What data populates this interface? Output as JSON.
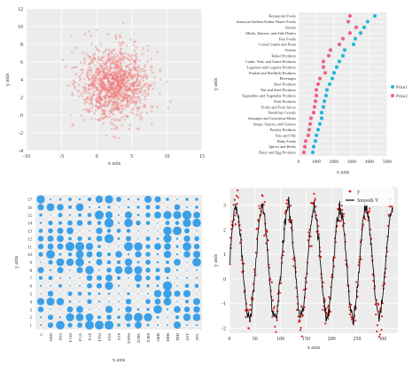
{
  "chart_data": [
    {
      "type": "scatter",
      "xlabel": "x axis",
      "ylabel": "y axis",
      "xlim": [
        -10,
        15
      ],
      "ylim": [
        -4,
        12
      ],
      "xticks": [
        -10,
        -5,
        0,
        5,
        10,
        15
      ],
      "yticks": [
        -4,
        -2,
        0,
        2,
        4,
        6,
        8,
        10,
        12
      ],
      "grid": true,
      "point_color": "#f07070",
      "cluster": {
        "center_x": 2.5,
        "center_y": 3.5,
        "spread_x": 2.4,
        "spread_y": 2.0,
        "count": 1200
      }
    },
    {
      "type": "scatter",
      "xlabel": "x axis",
      "ylabel": "y axis",
      "xlim": [
        0,
        5000
      ],
      "xticks": [
        0,
        1000,
        2000,
        3000,
        4000,
        5000
      ],
      "grid": true,
      "legend_position": "right",
      "categories": [
        "Restaurant Foods",
        "American Indian/Alaska Native Foods",
        "Snacks",
        "Meals, Entrees, and Side Dishes",
        "Fast Foods",
        "Cereal Grains and Pasta",
        "Sweets",
        "Baked Products",
        "Lamb, Veal, and Game Products",
        "Legumes and Legume Products",
        "Finfish and Shellfish Products",
        "Beverages",
        "Beef Products",
        "Nut and Seed Products",
        "Vegetables and Vegetable Products",
        "Pork Products",
        "Fruits and Fruit Juices",
        "Breakfast Cereals",
        "Sausages and Luncheon Meats",
        "Soups, Sauces, and Gravies",
        "Poultry Products",
        "Fats and Oils",
        "Baby Foods",
        "Spices and Herbs",
        "Dairy and Egg Products"
      ],
      "series": [
        {
          "name": "Price1",
          "color": "#22b8d8",
          "values": [
            4300,
            3900,
            3700,
            3500,
            3200,
            3100,
            2600,
            2500,
            2300,
            2150,
            2000,
            1900,
            1750,
            1600,
            1550,
            1450,
            1400,
            1300,
            1300,
            1200,
            1100,
            1000,
            950,
            850,
            800
          ]
        },
        {
          "name": "Price2",
          "color": "#f0608a",
          "values": [
            2900,
            2800,
            3250,
            2900,
            2500,
            2300,
            1800,
            1700,
            1400,
            1400,
            1500,
            1200,
            1100,
            1000,
            1000,
            950,
            900,
            850,
            700,
            650,
            600,
            550,
            400,
            350,
            300
          ]
        }
      ]
    },
    {
      "type": "scatter",
      "xlabel": "x axis",
      "ylabel": "y axis",
      "categories": [
        "G",
        "MIN",
        "PTS",
        "FGM",
        "FGA",
        "FGP",
        "FTM",
        "FTA",
        "FTP",
        "X3PM",
        "X3PA",
        "X3PP",
        "ORB",
        "DRB",
        "TRB",
        "AST",
        "STL"
      ],
      "yticks": [
        1,
        2,
        3,
        4,
        5,
        6,
        7,
        8,
        9,
        10,
        11,
        12,
        13,
        14,
        15,
        16,
        17
      ],
      "grid": true,
      "point_color": "#3aa0e8"
    },
    {
      "type": "line",
      "xlabel": "x axis",
      "ylabel": "y axis",
      "xlim": [
        0,
        330
      ],
      "ylim": [
        -2.2,
        3.7
      ],
      "xticks": [
        0,
        50,
        100,
        150,
        200,
        250,
        300
      ],
      "yticks": [
        -2,
        -1,
        0,
        1,
        2,
        3
      ],
      "grid": true,
      "legend_position": "top-right",
      "series": [
        {
          "name": "y",
          "color": "#e02020",
          "kind": "points",
          "model": {
            "amplitude": 2.3,
            "offset": 0.65,
            "period": 51,
            "noise": 0.35,
            "count": 320
          }
        },
        {
          "name": "Smooth Y",
          "color": "#111111",
          "kind": "line",
          "model": {
            "amplitude": 2.2,
            "offset": 0.65,
            "period": 51,
            "noise": 0.15,
            "count": 320
          }
        }
      ]
    }
  ]
}
